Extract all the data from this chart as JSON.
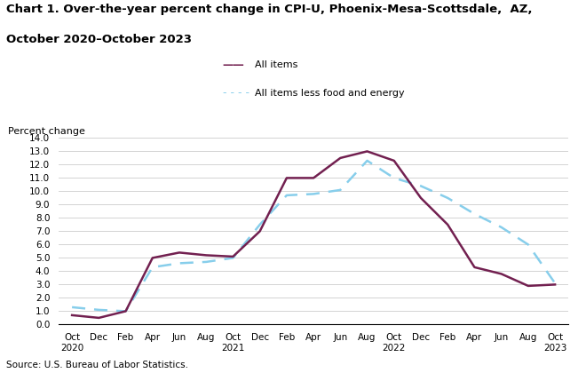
{
  "title_line1": "Chart 1. Over-the-year percent change in CPI-U, Phoenix-Mesa-Scottsdale,  AZ,",
  "title_line2": "October 2020–October 2023",
  "ylabel": "Percent change",
  "source": "Source: U.S. Bureau of Labor Statistics.",
  "legend_all_items": "All items",
  "legend_core": "All items less food and energy",
  "x_tick_labels": [
    "Oct\n2020",
    "Dec",
    "Feb",
    "Apr",
    "Jun",
    "Aug",
    "Oct\n2021",
    "Dec",
    "Feb",
    "Apr",
    "Jun",
    "Aug",
    "Oct\n2022",
    "Dec",
    "Feb",
    "Apr",
    "Jun",
    "Aug",
    "Oct\n2023"
  ],
  "ylim": [
    0.0,
    14.0
  ],
  "yticks": [
    0.0,
    1.0,
    2.0,
    3.0,
    4.0,
    5.0,
    6.0,
    7.0,
    8.0,
    9.0,
    10.0,
    11.0,
    12.0,
    13.0,
    14.0
  ],
  "all_items": [
    0.7,
    0.5,
    1.0,
    5.0,
    5.4,
    5.2,
    5.1,
    7.0,
    11.0,
    11.0,
    12.5,
    13.0,
    12.3,
    9.5,
    7.5,
    4.3,
    3.8,
    2.9,
    3.0
  ],
  "core_items": [
    1.3,
    1.1,
    1.0,
    4.3,
    4.6,
    4.7,
    5.0,
    7.5,
    9.7,
    9.8,
    10.1,
    12.3,
    11.0,
    10.4,
    9.5,
    8.3,
    7.3,
    6.0,
    3.1
  ],
  "all_items_color": "#722050",
  "core_items_color": "#87CEEB",
  "background_color": "#ffffff"
}
